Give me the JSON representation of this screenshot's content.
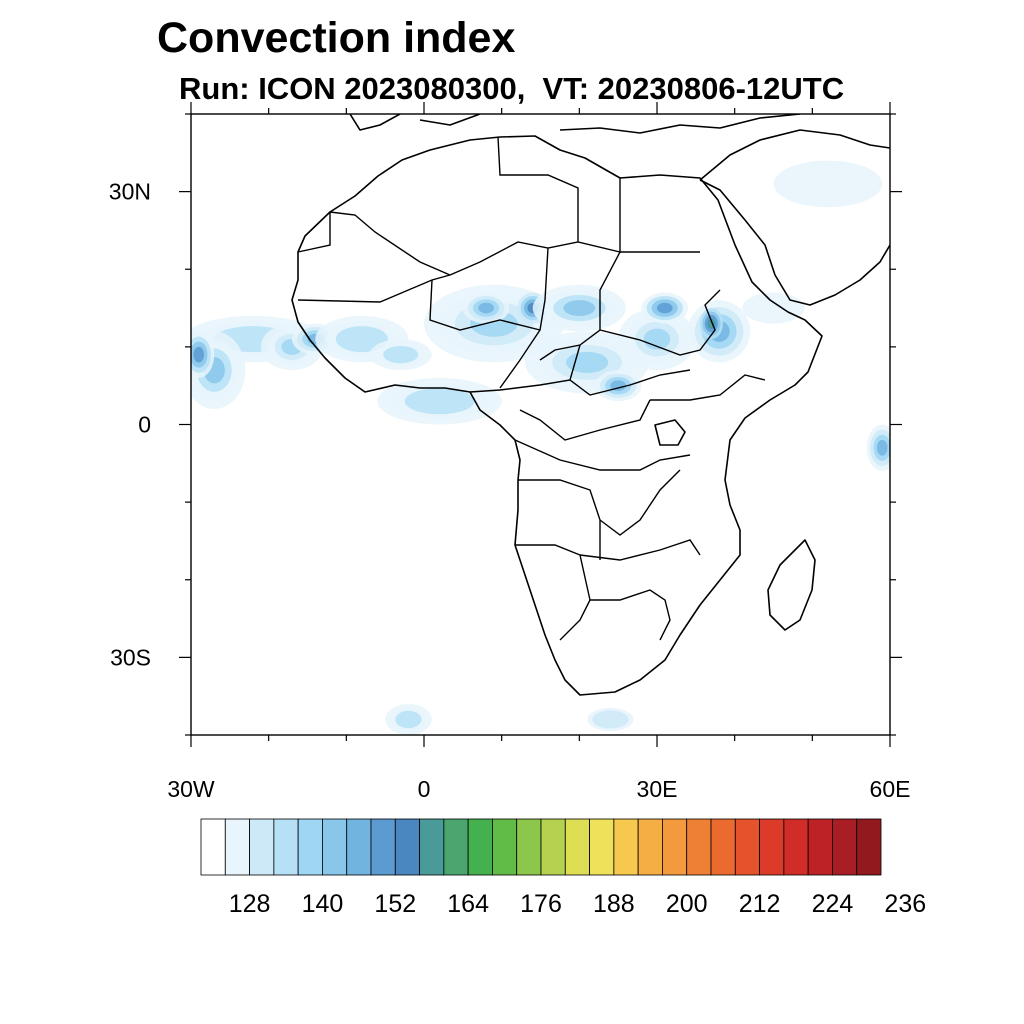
{
  "title": "Convection index",
  "subtitle": "Run: ICON 2023080300,  VT: 20230806-12UTC",
  "map": {
    "projection": "cylindrical equidistant",
    "lon_range": [
      -30,
      60
    ],
    "lat_range": [
      -40,
      40
    ],
    "x_ticks": [
      {
        "lon": -30,
        "label": "30W"
      },
      {
        "lon": 0,
        "label": "0"
      },
      {
        "lon": 30,
        "label": "30E"
      },
      {
        "lon": 60,
        "label": "60E"
      }
    ],
    "y_ticks": [
      {
        "lat": 30,
        "label": "30N"
      },
      {
        "lat": 0,
        "label": "0"
      },
      {
        "lat": -30,
        "label": "30S"
      }
    ],
    "minor_lon_step": 10,
    "minor_lat_step": 10,
    "coastline_color": "#000000",
    "field_name": "convection index"
  },
  "colorbar": {
    "colors": [
      "#ffffff",
      "#e8f5fc",
      "#cde9f7",
      "#b5e0f6",
      "#9ed6f3",
      "#88c6ea",
      "#72b4e0",
      "#5b9bd2",
      "#4a86bf",
      "#4a9a9a",
      "#4aa56f",
      "#44b04e",
      "#61bb47",
      "#8cc64a",
      "#b5d14f",
      "#dede55",
      "#f0e15a",
      "#f6c84e",
      "#f4ae44",
      "#f29a3d",
      "#ee8036",
      "#ea6a30",
      "#e4532c",
      "#dd3b2a",
      "#d02d29",
      "#bd2326",
      "#a91d24",
      "#921a1e"
    ],
    "labels": [
      "128",
      "140",
      "152",
      "164",
      "176",
      "188",
      "200",
      "212",
      "224",
      "236"
    ],
    "label_start_index": 2,
    "label_every": 3
  },
  "chart_data": {
    "type": "heatmap",
    "title": "Convection index",
    "subtitle": "Run: ICON 2023080300,  VT: 20230806-12UTC",
    "x_range": [
      -30,
      60
    ],
    "y_range": [
      -40,
      40
    ],
    "levels": [
      120,
      124,
      128,
      132,
      136,
      140,
      144,
      148,
      152,
      156,
      160,
      164,
      168,
      172,
      176,
      180,
      184,
      188,
      192,
      196,
      200,
      204,
      208,
      212,
      216,
      220,
      224,
      228,
      232,
      236,
      240
    ],
    "cells": [
      {
        "lon": -22,
        "lat": 11,
        "rx": 9,
        "ry": 3,
        "level": 3
      },
      {
        "lon": -27,
        "lat": 7,
        "rx": 4,
        "ry": 5,
        "level": 5
      },
      {
        "lon": -29,
        "lat": 9,
        "rx": 2,
        "ry": 3,
        "level": 7
      },
      {
        "lon": -17,
        "lat": 10,
        "rx": 4,
        "ry": 3,
        "level": 4
      },
      {
        "lon": -14,
        "lat": 11,
        "rx": 3,
        "ry": 2,
        "level": 6
      },
      {
        "lon": -8,
        "lat": 11,
        "rx": 6,
        "ry": 3,
        "level": 3
      },
      {
        "lon": -3,
        "lat": 9,
        "rx": 4,
        "ry": 2,
        "level": 3
      },
      {
        "lon": 9,
        "lat": 13,
        "rx": 9,
        "ry": 5,
        "level": 4
      },
      {
        "lon": 8,
        "lat": 15,
        "rx": 3,
        "ry": 2,
        "level": 6
      },
      {
        "lon": 14,
        "lat": 15,
        "rx": 2,
        "ry": 2,
        "level": 8
      },
      {
        "lon": 20,
        "lat": 15,
        "rx": 6,
        "ry": 3,
        "level": 5
      },
      {
        "lon": 21,
        "lat": 8,
        "rx": 8,
        "ry": 4,
        "level": 4
      },
      {
        "lon": 25,
        "lat": 5,
        "rx": 3,
        "ry": 2,
        "level": 6
      },
      {
        "lon": 30,
        "lat": 11,
        "rx": 5,
        "ry": 4,
        "level": 4
      },
      {
        "lon": 31,
        "lat": 15,
        "rx": 3,
        "ry": 2,
        "level": 7
      },
      {
        "lon": 38,
        "lat": 12,
        "rx": 4,
        "ry": 4,
        "level": 6
      },
      {
        "lon": 37,
        "lat": 13,
        "rx": 1.5,
        "ry": 2,
        "level": 9
      },
      {
        "lon": 2,
        "lat": 3,
        "rx": 8,
        "ry": 3,
        "level": 3
      },
      {
        "lon": 59,
        "lat": -3,
        "rx": 2,
        "ry": 3,
        "level": 6
      },
      {
        "lon": -2,
        "lat": -38,
        "rx": 3,
        "ry": 2,
        "level": 3
      },
      {
        "lon": 24,
        "lat": -38,
        "rx": 3,
        "ry": 1.5,
        "level": 2
      },
      {
        "lon": 52,
        "lat": 31,
        "rx": 7,
        "ry": 3,
        "level": 1
      },
      {
        "lon": 45,
        "lat": 15,
        "rx": 4,
        "ry": 2,
        "level": 1
      }
    ],
    "colorbar_labels": [
      "128",
      "140",
      "152",
      "164",
      "176",
      "188",
      "200",
      "212",
      "224",
      "236"
    ]
  }
}
